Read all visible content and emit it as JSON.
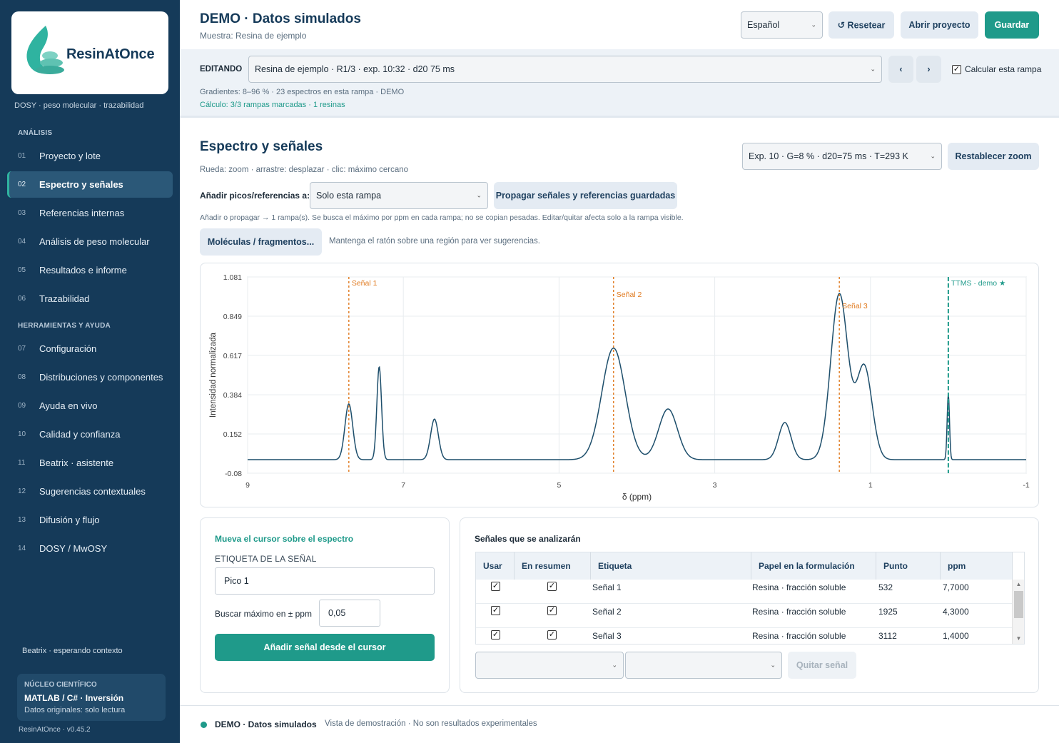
{
  "app": {
    "logo_text": "ResinAtOnce",
    "tagline": "DOSY · peso molecular · trazabilidad",
    "version": "ResinAtOnce · v0.45.2",
    "accent_color": "#1f9a8a",
    "sidebar_color": "#153a59"
  },
  "sidebar": {
    "section_analysis": "ANÁLISIS",
    "section_tools": "HERRAMIENTAS Y AYUDA",
    "items": [
      {
        "num": "01",
        "label": "Proyecto y lote"
      },
      {
        "num": "02",
        "label": "Espectro y señales"
      },
      {
        "num": "03",
        "label": "Referencias internas"
      },
      {
        "num": "04",
        "label": "Análisis de peso molecular"
      },
      {
        "num": "05",
        "label": "Resultados e informe"
      },
      {
        "num": "06",
        "label": "Trazabilidad"
      },
      {
        "num": "07",
        "label": "Configuración"
      },
      {
        "num": "08",
        "label": "Distribuciones y componentes"
      },
      {
        "num": "09",
        "label": "Ayuda en vivo"
      },
      {
        "num": "10",
        "label": "Calidad y confianza"
      },
      {
        "num": "11",
        "label": "Beatrix · asistente"
      },
      {
        "num": "12",
        "label": "Sugerencias contextuales"
      },
      {
        "num": "13",
        "label": "Difusión y flujo"
      },
      {
        "num": "14",
        "label": "DOSY / MwOSY"
      }
    ],
    "active_item": "02",
    "beatrix_status": "Beatrix · esperando contexto",
    "core_title": "NÚCLEO CIENTÍFICO",
    "core_main": "MATLAB / C# · Inversión",
    "core_sub": "Datos originales: solo lectura"
  },
  "header": {
    "title": "DEMO · Datos simulados",
    "subtitle": "Muestra: Resina de ejemplo",
    "language": "Español",
    "reset_label": "↺ Resetear",
    "open_label": "Abrir proyecto",
    "save_label": "Guardar"
  },
  "editbar": {
    "label": "EDITANDO",
    "ramp_select": "Resina de ejemplo · R1/3 · exp. 10:32 · d20 75 ms",
    "prev_label": "‹",
    "next_label": "›",
    "calc_label": "Calcular esta rampa",
    "calc_checked": true,
    "info1": "Gradientes: 8–96 % · 23 espectros en esta rampa · DEMO",
    "info2": "Cálculo: 3/3 rampas marcadas · 1 resinas"
  },
  "spectrum": {
    "title": "Espectro y señales",
    "hint": "Rueda: zoom · arrastre: desplazar · clic: máximo cercano",
    "exp_select": "Exp. 10 · G=8 % · d20=75 ms · T=293 K",
    "reset_zoom_label": "Restablecer zoom",
    "add_label": "Añadir picos/referencias a:",
    "add_select": "Solo esta rampa",
    "propagate_label": "Propagar señales y referencias guardadas",
    "add_note": "Añadir o propagar → 1 rampa(s). Se busca el máximo por ppm en cada rampa; no se copian pesadas. Editar/quitar afecta solo a la rampa visible.",
    "molecules_label": "Moléculas / fragmentos...",
    "molecules_note": "Mantenga el ratón sobre una región para ver sugerencias."
  },
  "chart_data": {
    "type": "line",
    "xlabel": "δ (ppm)",
    "ylabel": "Intensidad normalizada",
    "xlim": [
      9,
      -1
    ],
    "ylim": [
      -0.08,
      1.081
    ],
    "x_ticks": [
      "9",
      "7",
      "5",
      "3",
      "1",
      "-1"
    ],
    "y_ticks": [
      "1.081",
      "0.849",
      "0.617",
      "0.384",
      "0.152",
      "-0.08"
    ],
    "grid": true,
    "baseline": 0.0,
    "peaks": [
      {
        "ppm": 7.7,
        "height": 0.33,
        "width": 0.05
      },
      {
        "ppm": 7.31,
        "height": 0.55,
        "width": 0.03
      },
      {
        "ppm": 6.6,
        "height": 0.24,
        "width": 0.05
      },
      {
        "ppm": 4.3,
        "height": 0.66,
        "width": 0.15
      },
      {
        "ppm": 3.6,
        "height": 0.3,
        "width": 0.12
      },
      {
        "ppm": 2.1,
        "height": 0.22,
        "width": 0.08
      },
      {
        "ppm": 1.4,
        "height": 0.98,
        "width": 0.11
      },
      {
        "ppm": 1.08,
        "height": 0.55,
        "width": 0.1
      },
      {
        "ppm": 0.0,
        "height": 0.39,
        "width": 0.015
      }
    ],
    "markers": [
      {
        "ppm": 7.7,
        "label": "Señal 1",
        "color": "#e07a1f",
        "style": "dotted"
      },
      {
        "ppm": 4.3,
        "label": "Señal 2",
        "color": "#e07a1f",
        "style": "dotted"
      },
      {
        "ppm": 1.4,
        "label": "Señal 3",
        "color": "#e07a1f",
        "style": "dotted"
      },
      {
        "ppm": 0.0,
        "label": "TTMS · demo ★",
        "color": "#1f9a8a",
        "style": "dashed"
      }
    ],
    "line_color": "#1d4e6b"
  },
  "signal_form": {
    "title": "Mueva el cursor sobre el espectro",
    "label_caption": "ETIQUETA DE LA SEÑAL",
    "label_value": "Pico 1",
    "search_label": "Buscar máximo en ± ppm",
    "search_value": "0,05",
    "add_button": "Añadir señal desde el cursor"
  },
  "signals_table": {
    "title": "Señales que se analizarán",
    "columns": [
      "Usar",
      "En resumen",
      "Etiqueta",
      "Papel en la formulación",
      "Punto",
      "ppm"
    ],
    "rows": [
      {
        "use": true,
        "summary": true,
        "label": "Señal 1",
        "role": "Resina · fracción soluble",
        "point": "532",
        "ppm": "7,7000"
      },
      {
        "use": true,
        "summary": true,
        "label": "Señal 2",
        "role": "Resina · fracción soluble",
        "point": "1925",
        "ppm": "4,3000"
      },
      {
        "use": true,
        "summary": true,
        "label": "Señal 3",
        "role": "Resina · fracción soluble",
        "point": "3112",
        "ppm": "1,4000"
      }
    ],
    "remove_label": "Quitar señal"
  },
  "footer": {
    "title": "DEMO · Datos simulados",
    "note": "Vista de demostración · No son resultados experimentales"
  }
}
